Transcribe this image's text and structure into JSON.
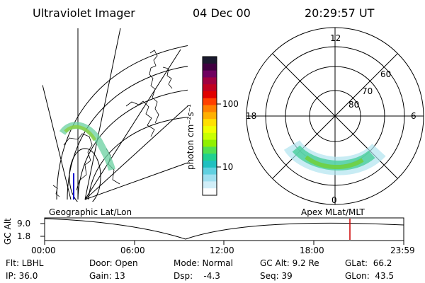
{
  "header": {
    "title": "Ultraviolet Imager",
    "date": "04 Dec 00",
    "time": "20:29:57 UT"
  },
  "geo_panel": {
    "label": "Geographic Lat/Lon"
  },
  "polar_panel": {
    "label": "Apex MLat/MLT",
    "mlt_labels": [
      "12",
      "18",
      "6",
      "0"
    ],
    "mlat_labels": [
      "60",
      "70",
      "80"
    ]
  },
  "colorbar": {
    "unit": "photon cm⁻²s⁻¹",
    "ticks": [
      "100",
      "10"
    ],
    "colors": [
      "#1a1a2e",
      "#400040",
      "#700060",
      "#a00040",
      "#c00020",
      "#e00000",
      "#ff4000",
      "#ff8000",
      "#ffb000",
      "#ffe000",
      "#f0ff00",
      "#c8ff00",
      "#90f000",
      "#50e050",
      "#20d090",
      "#20c0c0",
      "#60d0e0",
      "#a0e0f0",
      "#d0eef8",
      "#ffffff"
    ]
  },
  "altitude_plot": {
    "y_label": "GC Alt",
    "y_ticks": [
      "9.0",
      "1.8"
    ],
    "x_ticks": [
      "00:00",
      "06:00",
      "12:00",
      "18:00",
      "23:59"
    ],
    "marker_color": "#cc0000"
  },
  "status": {
    "flt": "Flt: LBHL",
    "door": "Door: Open",
    "mode": "Mode: Normal",
    "gc_alt": "GC Alt: 9.2 Re",
    "glat": "GLat:  66.2",
    "ip": "IP: 36.0",
    "gain": "Gain: 13",
    "dsp": "Dsp:    -4.3",
    "seq": "Seq: 39",
    "glon": "GLon:  43.5"
  }
}
